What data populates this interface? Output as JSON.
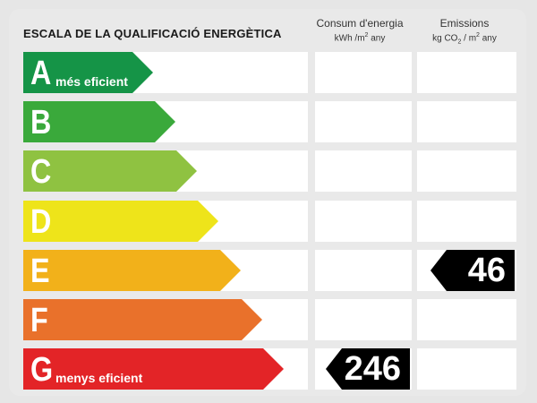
{
  "title": "ESCALA DE LA QUALIFICACIÓ ENERGÈTICA",
  "columns": {
    "consumption": {
      "line1": "Consum d'energia",
      "line2_a": "kWh /m",
      "line2_sup": "2",
      "line2_b": " any"
    },
    "emissions": {
      "line1": "Emissions",
      "line2_a": "kg CO",
      "line2_sub": "2",
      "line2_b": " / m",
      "line2_sup": "2",
      "line2_c": " any"
    }
  },
  "rating_rows": [
    {
      "letter": "A",
      "sublabel": "més eficient",
      "color": "#159447"
    },
    {
      "letter": "B",
      "sublabel": "",
      "color": "#3aa93b"
    },
    {
      "letter": "C",
      "sublabel": "",
      "color": "#8fc241"
    },
    {
      "letter": "D",
      "sublabel": "",
      "color": "#eee41a"
    },
    {
      "letter": "E",
      "sublabel": "",
      "color": "#f2b11a"
    },
    {
      "letter": "F",
      "sublabel": "",
      "color": "#e9712b"
    },
    {
      "letter": "G",
      "sublabel": "menys eficient",
      "color": "#e32427"
    }
  ],
  "consumption_value": {
    "value": "246",
    "rating": "G"
  },
  "emissions_value": {
    "value": "46",
    "rating": "E"
  }
}
